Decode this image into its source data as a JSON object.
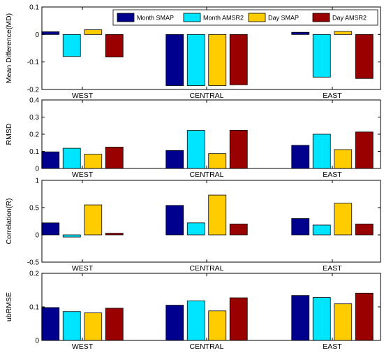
{
  "chart_data": {
    "type": "bar",
    "categories": [
      "WEST",
      "CENTRAL",
      "EAST"
    ],
    "series": [
      {
        "name": "Month SMAP",
        "color": "#00008f"
      },
      {
        "name": "Month AMSR2",
        "color": "#00e5ff"
      },
      {
        "name": "Day SMAP",
        "color": "#ffcc00"
      },
      {
        "name": "Day AMSR2",
        "color": "#990000"
      }
    ],
    "legend": {
      "position": "top-right",
      "panel": 0
    },
    "grid": false,
    "panels": [
      {
        "ylabel": "Mean Difference(MD)",
        "ylim": [
          -0.2,
          0.1
        ],
        "yticks": [
          -0.2,
          -0.1,
          0,
          0.1
        ],
        "ytick_labels": [
          "-0.2",
          "-0.1",
          "0",
          "0.1"
        ],
        "values": [
          [
            0.01,
            -0.186,
            0.008
          ],
          [
            -0.08,
            -0.186,
            -0.155
          ],
          [
            0.017,
            -0.186,
            0.011
          ],
          [
            -0.082,
            -0.183,
            -0.16
          ]
        ]
      },
      {
        "ylabel": "RMSD",
        "ylim": [
          0,
          0.4
        ],
        "yticks": [
          0,
          0.1,
          0.2,
          0.3,
          0.4
        ],
        "ytick_labels": [
          "0",
          "0.1",
          "0.2",
          "0.3",
          "0.4"
        ],
        "values": [
          [
            0.097,
            0.105,
            0.135
          ],
          [
            0.118,
            0.222,
            0.2
          ],
          [
            0.083,
            0.087,
            0.11
          ],
          [
            0.125,
            0.223,
            0.213
          ]
        ]
      },
      {
        "ylabel": "Correlation(R)",
        "ylim": [
          -0.5,
          1
        ],
        "yticks": [
          -0.5,
          0,
          0.5,
          1
        ],
        "ytick_labels": [
          "-0.5",
          "0",
          "0.5",
          "1"
        ],
        "values": [
          [
            0.22,
            0.54,
            0.3
          ],
          [
            -0.04,
            0.22,
            0.18
          ],
          [
            0.55,
            0.73,
            0.58
          ],
          [
            0.03,
            0.2,
            0.2
          ]
        ]
      },
      {
        "ylabel": "ubRMSE",
        "ylim": [
          0,
          0.2
        ],
        "yticks": [
          0,
          0.1,
          0.2
        ],
        "ytick_labels": [
          "0",
          "0.1",
          "0.2"
        ],
        "values": [
          [
            0.098,
            0.105,
            0.134
          ],
          [
            0.086,
            0.118,
            0.128
          ],
          [
            0.082,
            0.088,
            0.109
          ],
          [
            0.096,
            0.127,
            0.141
          ]
        ]
      }
    ]
  }
}
